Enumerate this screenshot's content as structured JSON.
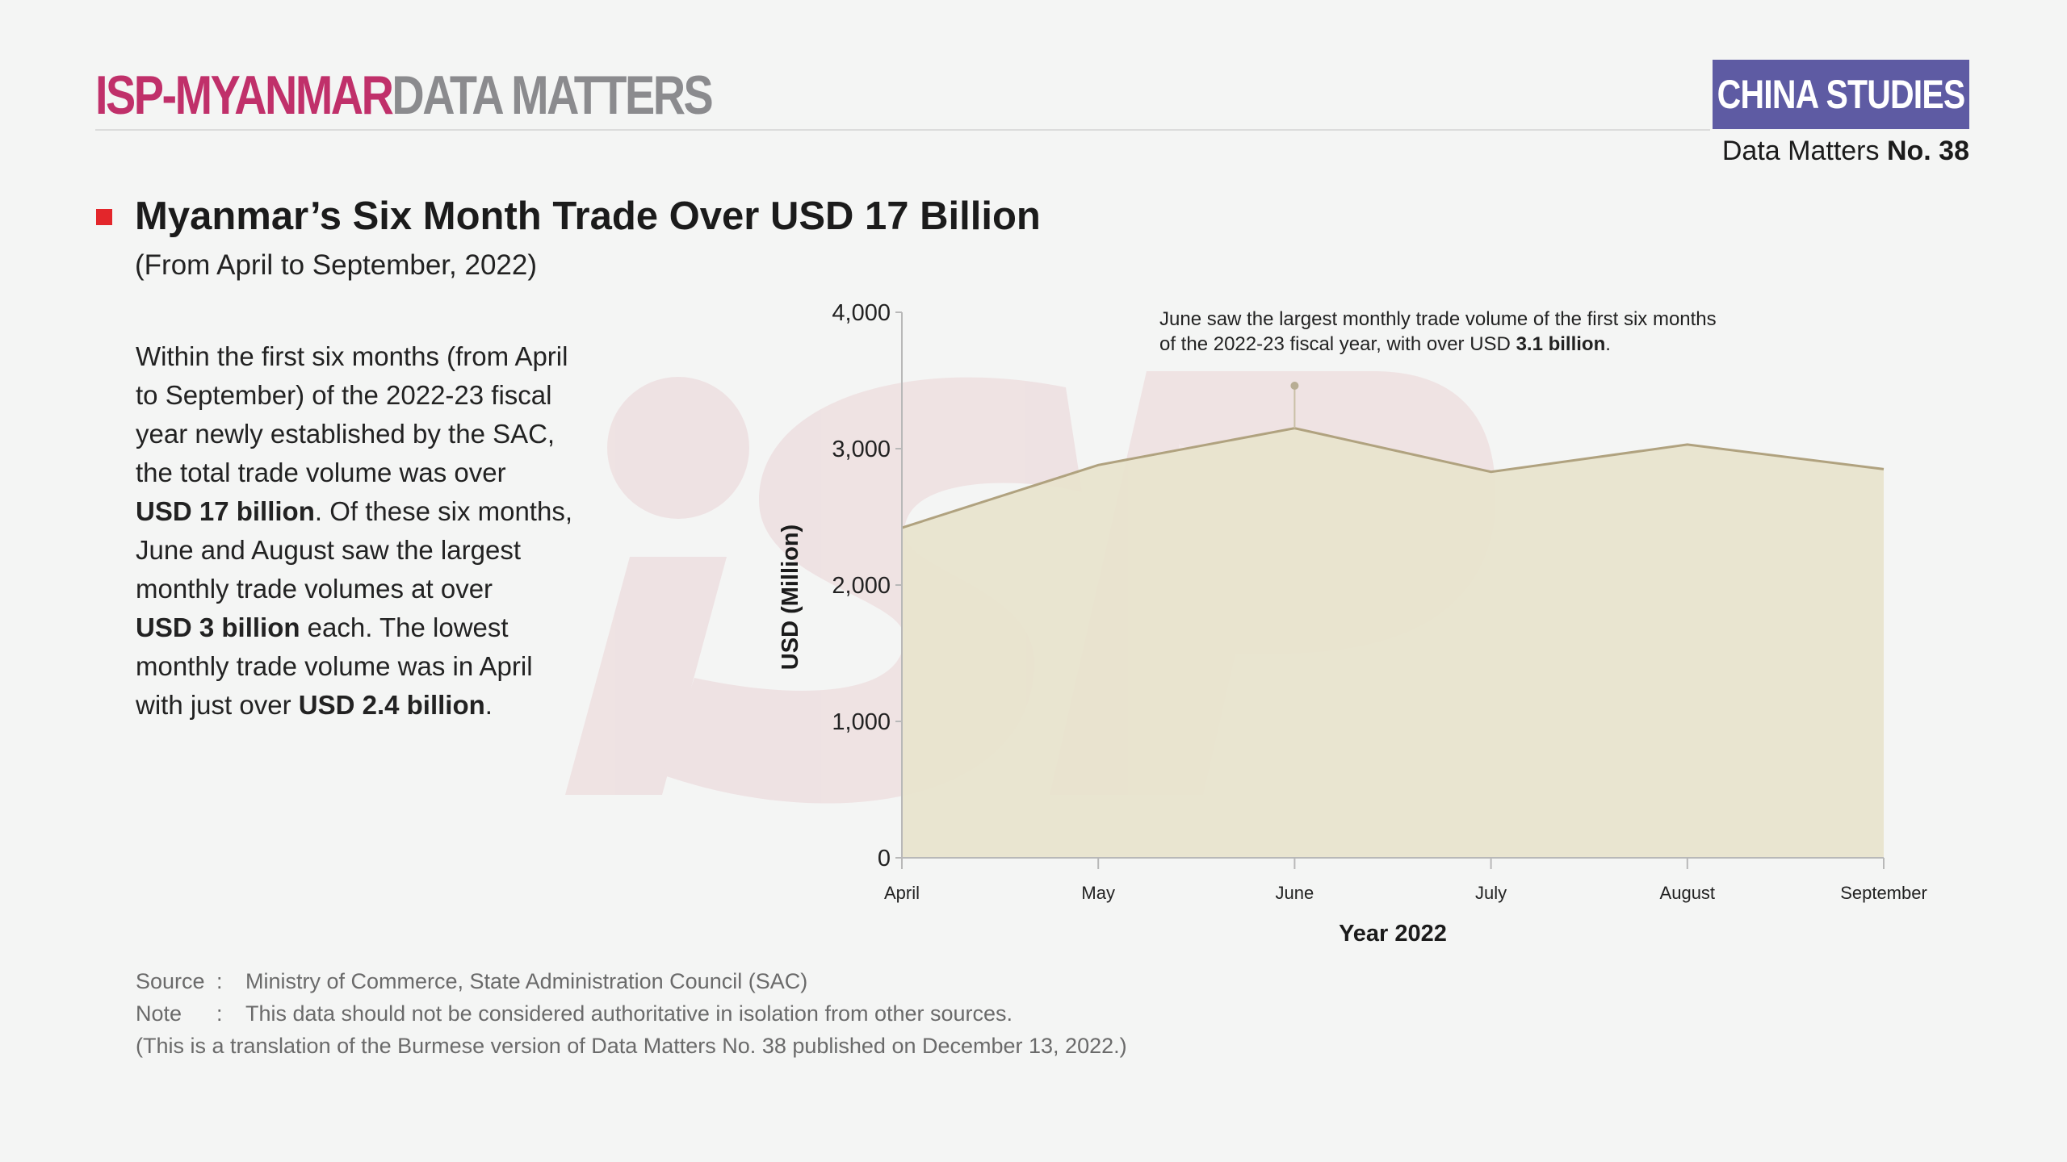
{
  "header": {
    "brand_primary": "ISP-MYANMAR",
    "brand_secondary": "DATA MATTERS",
    "series": "CHINA STUDIES",
    "issue_prefix": "Data Matters",
    "issue_number": "No. 38",
    "watermark": "iSP"
  },
  "content": {
    "title": "Myanmar’s Six Month Trade Over USD 17 Billion",
    "subtitle": "(From April to September, 2022)",
    "summary": {
      "l1": "Within the first six months (from April",
      "l2": "to September) of the 2022-23 fiscal",
      "l3": "year newly established by the SAC,",
      "l4": "the total trade volume was over",
      "l5_bold": "USD 17 billion",
      "l5_rest": ". Of these six months,",
      "l6": "June and August saw the largest",
      "l7": "monthly trade volumes at over",
      "l8_bold": "USD 3 billion",
      "l8_rest": " each. The lowest",
      "l9": "monthly trade volume was in April",
      "l10_pre": "with just over ",
      "l10_bold": "USD 2.4 billion",
      "l10_post": "."
    }
  },
  "annotation": {
    "line1": "June saw the largest monthly trade volume of the first six months",
    "line2_pre": "of the 2022-23 fiscal year, with over USD ",
    "line2_bold": "3.1 billion",
    "line2_post": "."
  },
  "footer": {
    "source_label": "Source",
    "source_text": "Ministry of Commerce, State Administration Council (SAC)",
    "note_label": "Note",
    "note_text": "This data should not be considered authoritative in isolation from other sources.",
    "colon": ":",
    "translation": "(This is a translation of the Burmese version of Data Matters No. 38 published on December 13, 2022.)"
  },
  "colors": {
    "brand_primary": "#c0306a",
    "brand_secondary": "#8b8b8e",
    "badge": "#5e5ba3",
    "marker": "#e3262b",
    "area_fill": "#e8e3cc",
    "area_line": "#b0a27f",
    "watermark": "#eddcde"
  },
  "chart_data": {
    "type": "area",
    "categories": [
      "April",
      "May",
      "June",
      "July",
      "August",
      "September"
    ],
    "values": [
      2420,
      2880,
      3150,
      2830,
      3030,
      2850
    ],
    "ylim": [
      0,
      4000
    ],
    "yticks": [
      0,
      1000,
      2000,
      3000,
      4000
    ],
    "ytick_labels": [
      "0",
      "1,000",
      "2,000",
      "3,000",
      "4,000"
    ],
    "xlabel": "Year 2022",
    "ylabel": "USD (Million)",
    "highlight_category": "June",
    "grid": false,
    "legend": "none"
  }
}
